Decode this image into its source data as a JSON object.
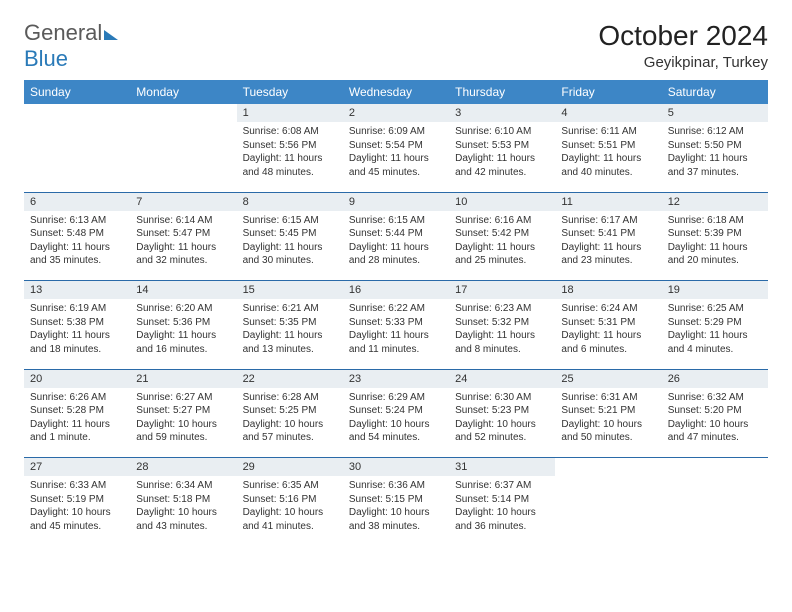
{
  "logo": {
    "text1": "General",
    "text2": "Blue"
  },
  "title": "October 2024",
  "location": "Geyikpinar, Turkey",
  "colors": {
    "header_bg": "#3d86c6",
    "header_fg": "#ffffff",
    "row_sep": "#2a6aa8",
    "daynum_bg": "#e9eef2",
    "text": "#333333",
    "logo_gray": "#5a5a5a",
    "logo_blue": "#2a7ab8"
  },
  "dow": [
    "Sunday",
    "Monday",
    "Tuesday",
    "Wednesday",
    "Thursday",
    "Friday",
    "Saturday"
  ],
  "weeks": [
    [
      {
        "n": "",
        "sr": "",
        "ss": "",
        "dl": ""
      },
      {
        "n": "",
        "sr": "",
        "ss": "",
        "dl": ""
      },
      {
        "n": "1",
        "sr": "Sunrise: 6:08 AM",
        "ss": "Sunset: 5:56 PM",
        "dl": "Daylight: 11 hours and 48 minutes."
      },
      {
        "n": "2",
        "sr": "Sunrise: 6:09 AM",
        "ss": "Sunset: 5:54 PM",
        "dl": "Daylight: 11 hours and 45 minutes."
      },
      {
        "n": "3",
        "sr": "Sunrise: 6:10 AM",
        "ss": "Sunset: 5:53 PM",
        "dl": "Daylight: 11 hours and 42 minutes."
      },
      {
        "n": "4",
        "sr": "Sunrise: 6:11 AM",
        "ss": "Sunset: 5:51 PM",
        "dl": "Daylight: 11 hours and 40 minutes."
      },
      {
        "n": "5",
        "sr": "Sunrise: 6:12 AM",
        "ss": "Sunset: 5:50 PM",
        "dl": "Daylight: 11 hours and 37 minutes."
      }
    ],
    [
      {
        "n": "6",
        "sr": "Sunrise: 6:13 AM",
        "ss": "Sunset: 5:48 PM",
        "dl": "Daylight: 11 hours and 35 minutes."
      },
      {
        "n": "7",
        "sr": "Sunrise: 6:14 AM",
        "ss": "Sunset: 5:47 PM",
        "dl": "Daylight: 11 hours and 32 minutes."
      },
      {
        "n": "8",
        "sr": "Sunrise: 6:15 AM",
        "ss": "Sunset: 5:45 PM",
        "dl": "Daylight: 11 hours and 30 minutes."
      },
      {
        "n": "9",
        "sr": "Sunrise: 6:15 AM",
        "ss": "Sunset: 5:44 PM",
        "dl": "Daylight: 11 hours and 28 minutes."
      },
      {
        "n": "10",
        "sr": "Sunrise: 6:16 AM",
        "ss": "Sunset: 5:42 PM",
        "dl": "Daylight: 11 hours and 25 minutes."
      },
      {
        "n": "11",
        "sr": "Sunrise: 6:17 AM",
        "ss": "Sunset: 5:41 PM",
        "dl": "Daylight: 11 hours and 23 minutes."
      },
      {
        "n": "12",
        "sr": "Sunrise: 6:18 AM",
        "ss": "Sunset: 5:39 PM",
        "dl": "Daylight: 11 hours and 20 minutes."
      }
    ],
    [
      {
        "n": "13",
        "sr": "Sunrise: 6:19 AM",
        "ss": "Sunset: 5:38 PM",
        "dl": "Daylight: 11 hours and 18 minutes."
      },
      {
        "n": "14",
        "sr": "Sunrise: 6:20 AM",
        "ss": "Sunset: 5:36 PM",
        "dl": "Daylight: 11 hours and 16 minutes."
      },
      {
        "n": "15",
        "sr": "Sunrise: 6:21 AM",
        "ss": "Sunset: 5:35 PM",
        "dl": "Daylight: 11 hours and 13 minutes."
      },
      {
        "n": "16",
        "sr": "Sunrise: 6:22 AM",
        "ss": "Sunset: 5:33 PM",
        "dl": "Daylight: 11 hours and 11 minutes."
      },
      {
        "n": "17",
        "sr": "Sunrise: 6:23 AM",
        "ss": "Sunset: 5:32 PM",
        "dl": "Daylight: 11 hours and 8 minutes."
      },
      {
        "n": "18",
        "sr": "Sunrise: 6:24 AM",
        "ss": "Sunset: 5:31 PM",
        "dl": "Daylight: 11 hours and 6 minutes."
      },
      {
        "n": "19",
        "sr": "Sunrise: 6:25 AM",
        "ss": "Sunset: 5:29 PM",
        "dl": "Daylight: 11 hours and 4 minutes."
      }
    ],
    [
      {
        "n": "20",
        "sr": "Sunrise: 6:26 AM",
        "ss": "Sunset: 5:28 PM",
        "dl": "Daylight: 11 hours and 1 minute."
      },
      {
        "n": "21",
        "sr": "Sunrise: 6:27 AM",
        "ss": "Sunset: 5:27 PM",
        "dl": "Daylight: 10 hours and 59 minutes."
      },
      {
        "n": "22",
        "sr": "Sunrise: 6:28 AM",
        "ss": "Sunset: 5:25 PM",
        "dl": "Daylight: 10 hours and 57 minutes."
      },
      {
        "n": "23",
        "sr": "Sunrise: 6:29 AM",
        "ss": "Sunset: 5:24 PM",
        "dl": "Daylight: 10 hours and 54 minutes."
      },
      {
        "n": "24",
        "sr": "Sunrise: 6:30 AM",
        "ss": "Sunset: 5:23 PM",
        "dl": "Daylight: 10 hours and 52 minutes."
      },
      {
        "n": "25",
        "sr": "Sunrise: 6:31 AM",
        "ss": "Sunset: 5:21 PM",
        "dl": "Daylight: 10 hours and 50 minutes."
      },
      {
        "n": "26",
        "sr": "Sunrise: 6:32 AM",
        "ss": "Sunset: 5:20 PM",
        "dl": "Daylight: 10 hours and 47 minutes."
      }
    ],
    [
      {
        "n": "27",
        "sr": "Sunrise: 6:33 AM",
        "ss": "Sunset: 5:19 PM",
        "dl": "Daylight: 10 hours and 45 minutes."
      },
      {
        "n": "28",
        "sr": "Sunrise: 6:34 AM",
        "ss": "Sunset: 5:18 PM",
        "dl": "Daylight: 10 hours and 43 minutes."
      },
      {
        "n": "29",
        "sr": "Sunrise: 6:35 AM",
        "ss": "Sunset: 5:16 PM",
        "dl": "Daylight: 10 hours and 41 minutes."
      },
      {
        "n": "30",
        "sr": "Sunrise: 6:36 AM",
        "ss": "Sunset: 5:15 PM",
        "dl": "Daylight: 10 hours and 38 minutes."
      },
      {
        "n": "31",
        "sr": "Sunrise: 6:37 AM",
        "ss": "Sunset: 5:14 PM",
        "dl": "Daylight: 10 hours and 36 minutes."
      },
      {
        "n": "",
        "sr": "",
        "ss": "",
        "dl": ""
      },
      {
        "n": "",
        "sr": "",
        "ss": "",
        "dl": ""
      }
    ]
  ]
}
